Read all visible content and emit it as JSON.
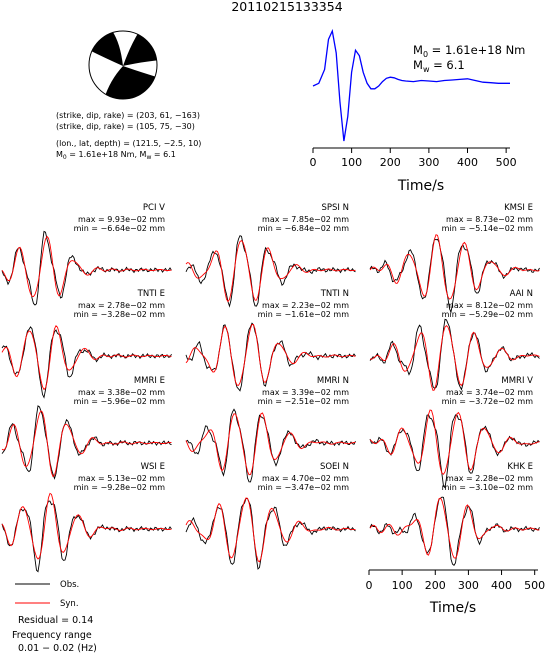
{
  "title": "20110215133354",
  "mechanism": {
    "line1": "(strike, dip, rake) = (203, 61, −163)",
    "line2": "(strike, dip, rake) = (105, 75, −30)",
    "line3": "(lon., lat, depth) = (121.5, −2.5, 10)",
    "line4_prefix": "M",
    "line4_sub0": "0",
    "line4_mid": " = 1.61e+18 Nm, M",
    "line4_subw": "w",
    "line4_suffix": " = 6.1"
  },
  "stf": {
    "m0_prefix": "M",
    "m0_sub": "0",
    "m0_value": " = 1.61e+18 Nm",
    "mw_prefix": "M",
    "mw_sub": "w",
    "mw_value": " = 6.1",
    "xlabel": "Time/s",
    "xticks": [
      "0",
      "100",
      "200",
      "300",
      "400",
      "500"
    ],
    "color": "#0000ff"
  },
  "colors": {
    "obs": "#000000",
    "syn": "#ff0000"
  },
  "panels": [
    {
      "label": "PCI V",
      "max": "max = 9.93e−02 mm",
      "min": "min = −6.64e−02 mm"
    },
    {
      "label": "SPSI N",
      "max": "max = 7.85e−02 mm",
      "min": "min = −6.84e−02 mm"
    },
    {
      "label": "KMSI E",
      "max": "max = 8.73e−02 mm",
      "min": "min = −5.14e−02 mm"
    },
    {
      "label": "TNTI E",
      "max": "max = 2.78e−02 mm",
      "min": "min = −3.28e−02 mm"
    },
    {
      "label": "TNTI N",
      "max": "max = 2.23e−02 mm",
      "min": "min = −1.61e−02 mm"
    },
    {
      "label": "AAI N",
      "max": "max = 8.12e−02 mm",
      "min": "min = −5.29e−02 mm"
    },
    {
      "label": "MMRI E",
      "max": "max = 3.38e−02 mm",
      "min": "min = −5.96e−02 mm"
    },
    {
      "label": "MMRI N",
      "max": "max = 3.39e−02 mm",
      "min": "min = −2.51e−02 mm"
    },
    {
      "label": "MMRI V",
      "max": "max = 3.74e−02 mm",
      "min": "min = −3.72e−02 mm"
    },
    {
      "label": "WSI E",
      "max": "max = 5.13e−02 mm",
      "min": "min = −9.28e−02 mm"
    },
    {
      "label": "SOEI N",
      "max": "max = 4.70e−02 mm",
      "min": "min = −3.47e−02 mm"
    },
    {
      "label": "KHK E",
      "max": "max = 2.28e−02 mm",
      "min": "min = −3.10e−02 mm"
    }
  ],
  "bottom_axis": {
    "xlabel": "Time/s",
    "xticks": [
      "0",
      "100",
      "200",
      "300",
      "400",
      "500"
    ]
  },
  "legend": {
    "obs": "Obs.",
    "syn": "Syn."
  },
  "residual": "Residual = 0.14",
  "freq_label": "Frequency range",
  "freq_value": "0.01 − 0.02 (Hz)",
  "chart_data": {
    "type": "line",
    "title": "20110215133354",
    "source_time_function": {
      "xlabel": "Time/s",
      "xlim": [
        0,
        510
      ],
      "x": [
        0,
        15,
        30,
        40,
        50,
        60,
        70,
        80,
        90,
        100,
        110,
        120,
        130,
        140,
        150,
        160,
        170,
        180,
        190,
        200,
        210,
        220,
        230,
        240,
        260,
        280,
        300,
        320,
        340,
        360,
        380,
        400,
        420,
        440,
        460,
        480,
        500,
        510
      ],
      "y": [
        0,
        0.05,
        0.3,
        0.85,
        1.0,
        0.6,
        -0.3,
        -1.0,
        -0.55,
        0.25,
        0.65,
        0.55,
        0.25,
        0.05,
        -0.05,
        -0.05,
        0.0,
        0.08,
        0.14,
        0.16,
        0.15,
        0.12,
        0.1,
        0.09,
        0.08,
        0.1,
        0.09,
        0.08,
        0.1,
        0.11,
        0.12,
        0.13,
        0.1,
        0.07,
        0.06,
        0.05,
        0.05,
        0.05
      ]
    },
    "waveform_xlabel": "Time/s",
    "waveform_xlim": [
      0,
      510
    ],
    "series": [
      {
        "name": "Obs."
      },
      {
        "name": "Syn."
      }
    ]
  }
}
